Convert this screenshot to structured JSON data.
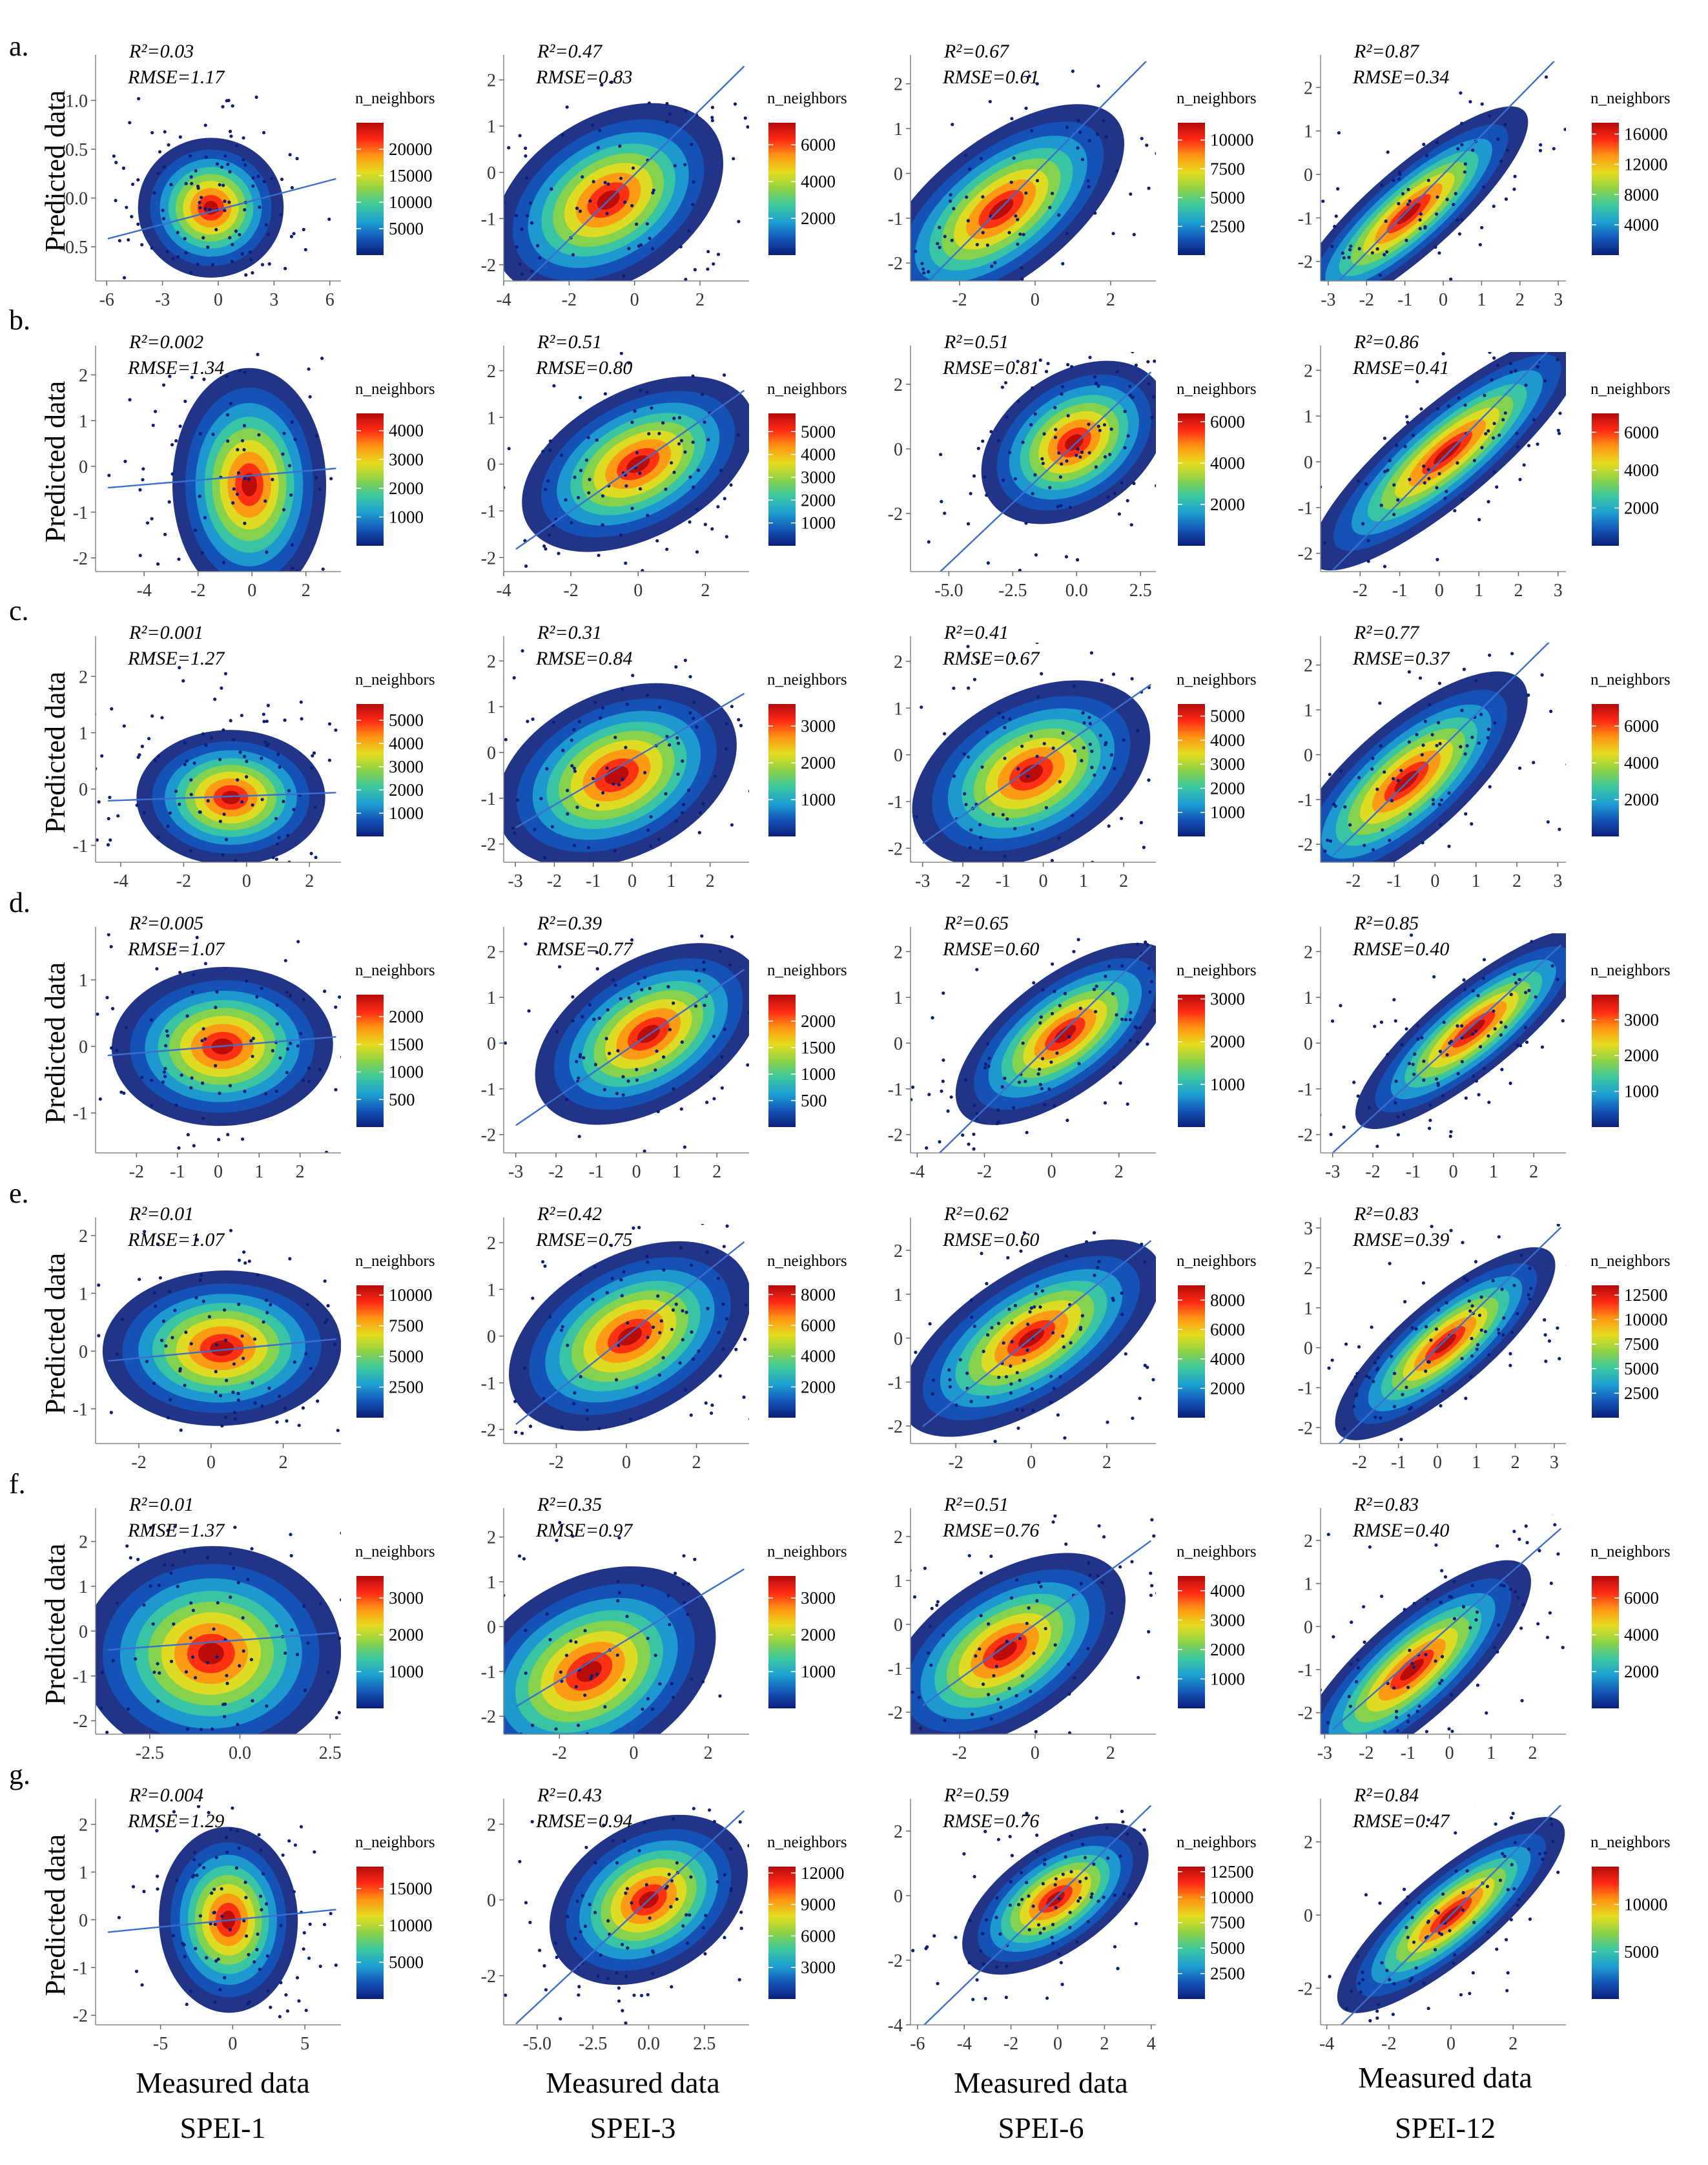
{
  "figure": {
    "y_axis_label": "Predicted data",
    "x_axis_label": "Measured data",
    "legend_title": "n_neighbors",
    "column_labels": [
      "SPEI-1",
      "SPEI-3",
      "SPEI-6",
      "SPEI-12"
    ],
    "colorscale": [
      "#0a1e7a",
      "#1455b8",
      "#1ea0d2",
      "#3cc8a0",
      "#8cd246",
      "#e6dc1e",
      "#ff9614",
      "#ff2814",
      "#b40a0a"
    ]
  },
  "chart_data": [
    {
      "type": "scatter",
      "row": "a.",
      "column": "SPEI-1",
      "r2": "R²=0.03",
      "rmse": "RMSE=1.17",
      "xlim": [
        -6.6,
        6.6
      ],
      "ylim": [
        -0.85,
        1.4
      ],
      "xticks": [
        "-6",
        "-3",
        "0",
        "3",
        "6"
      ],
      "yticks": [
        "-0.5",
        "0.0",
        "0.5",
        "1.0"
      ],
      "cx": -0.4,
      "cy": -0.1,
      "sx": 1.3,
      "sy": 0.24,
      "rho": 0.1,
      "fit": {
        "slope": 0.05,
        "intercept": -0.12
      },
      "legend_ticks": [
        "5000",
        "10000",
        "15000",
        "20000"
      ],
      "legend_max": 25000
    },
    {
      "type": "scatter",
      "row": "a.",
      "column": "SPEI-3",
      "r2": "R²=0.47",
      "rmse": "RMSE=0.83",
      "xlim": [
        -4,
        3.5
      ],
      "ylim": [
        -2.35,
        2.4
      ],
      "xticks": [
        "-4",
        "-2",
        "0",
        "2"
      ],
      "yticks": [
        "-2",
        "-1",
        "0",
        "1",
        "2"
      ],
      "cx": -0.8,
      "cy": -0.6,
      "sx": 0.95,
      "sy": 0.85,
      "rho": 0.72,
      "fit": {
        "slope": 0.7,
        "intercept": -0.05
      },
      "legend_ticks": [
        "2000",
        "4000",
        "6000"
      ],
      "legend_max": 7200
    },
    {
      "type": "scatter",
      "row": "a.",
      "column": "SPEI-6",
      "r2": "R²=0.67",
      "rmse": "RMSE=0.61",
      "xlim": [
        -3.3,
        3.2
      ],
      "ylim": [
        -2.4,
        2.5
      ],
      "xticks": [
        "-2",
        "0",
        "2"
      ],
      "yticks": [
        "-2",
        "-1",
        "0",
        "1",
        "2"
      ],
      "cx": -0.9,
      "cy": -0.8,
      "sx": 0.95,
      "sy": 0.9,
      "rho": 0.82,
      "fit": {
        "slope": 0.85,
        "intercept": 0.0
      },
      "legend_ticks": [
        "2500",
        "5000",
        "7500",
        "10000"
      ],
      "legend_max": 11500
    },
    {
      "type": "scatter",
      "row": "a.",
      "column": "SPEI-12",
      "r2": "R²=0.87",
      "rmse": "RMSE=0.34",
      "xlim": [
        -3.2,
        3.2
      ],
      "ylim": [
        -2.45,
        2.6
      ],
      "xticks": [
        "-3",
        "-2",
        "-1",
        "0",
        "1",
        "2",
        "3"
      ],
      "yticks": [
        "-2",
        "-1",
        "0",
        "1",
        "2"
      ],
      "cx": -0.9,
      "cy": -0.9,
      "sx": 0.95,
      "sy": 0.9,
      "rho": 0.93,
      "fit": {
        "slope": 0.9,
        "intercept": 0.0
      },
      "legend_ticks": [
        "4000",
        "8000",
        "12000",
        "16000"
      ],
      "legend_max": 17500
    },
    {
      "type": "scatter",
      "row": "b.",
      "column": "SPEI-1",
      "r2": "R²=0.002",
      "rmse": "RMSE=1.34",
      "xlim": [
        -5.8,
        3.3
      ],
      "ylim": [
        -2.3,
        2.5
      ],
      "xticks": [
        "-4",
        "-2",
        "0",
        "2"
      ],
      "yticks": [
        "-2",
        "-1",
        "0",
        "1",
        "2"
      ],
      "cx": -0.1,
      "cy": -0.4,
      "sx": 0.95,
      "sy": 0.85,
      "rho": 0.0,
      "fit": {
        "slope": 0.05,
        "intercept": -0.2
      },
      "legend_ticks": [
        "1000",
        "2000",
        "3000",
        "4000"
      ],
      "legend_max": 4600
    },
    {
      "type": "scatter",
      "row": "b.",
      "column": "SPEI-3",
      "r2": "R²=0.51",
      "rmse": "RMSE=0.80",
      "xlim": [
        -4,
        3.3
      ],
      "ylim": [
        -2.3,
        2.4
      ],
      "xticks": [
        "-4",
        "-2",
        "0",
        "2"
      ],
      "yticks": [
        "-2",
        "-1",
        "0",
        "1",
        "2"
      ],
      "cx": 0.0,
      "cy": 0.0,
      "sx": 1.0,
      "sy": 0.75,
      "rho": 0.72,
      "fit": {
        "slope": 0.5,
        "intercept": 0.0
      },
      "legend_ticks": [
        "1000",
        "2000",
        "3000",
        "4000",
        "5000"
      ],
      "legend_max": 5800
    },
    {
      "type": "scatter",
      "row": "b.",
      "column": "SPEI-6",
      "r2": "R²=0.51",
      "rmse": "RMSE=0.81",
      "xlim": [
        -6.5,
        3.1
      ],
      "ylim": [
        -3.8,
        3.0
      ],
      "xticks": [
        "-5.0",
        "-2.5",
        "0.0",
        "2.5"
      ],
      "yticks": [
        "-2",
        "0",
        "2"
      ],
      "cx": -0.1,
      "cy": 0.2,
      "sx": 1.0,
      "sy": 1.0,
      "rho": 0.7,
      "fit": {
        "slope": 0.75,
        "intercept": 0.2
      },
      "legend_ticks": [
        "2000",
        "4000",
        "6000"
      ],
      "legend_max": 6400
    },
    {
      "type": "scatter",
      "row": "b.",
      "column": "SPEI-12",
      "r2": "R²=0.86",
      "rmse": "RMSE=0.41",
      "xlim": [
        -3.0,
        3.2
      ],
      "ylim": [
        -2.4,
        2.4
      ],
      "xticks": [
        "-2",
        "-1",
        "0",
        "1",
        "2",
        "3"
      ],
      "yticks": [
        "-2",
        "-1",
        "0",
        "1",
        "2"
      ],
      "cx": 0.2,
      "cy": 0.2,
      "sx": 1.05,
      "sy": 0.95,
      "rho": 0.93,
      "fit": {
        "slope": 0.88,
        "intercept": 0.0
      },
      "legend_ticks": [
        "2000",
        "4000",
        "6000"
      ],
      "legend_max": 7000
    },
    {
      "type": "scatter",
      "row": "c.",
      "column": "SPEI-1",
      "r2": "R²=0.001",
      "rmse": "RMSE=1.27",
      "xlim": [
        -4.8,
        3.0
      ],
      "ylim": [
        -1.3,
        2.6
      ],
      "xticks": [
        "-4",
        "-2",
        "0",
        "2"
      ],
      "yticks": [
        "-1",
        "0",
        "1",
        "2"
      ],
      "cx": -0.5,
      "cy": -0.15,
      "sx": 1.0,
      "sy": 0.4,
      "rho": 0.0,
      "fit": {
        "slope": 0.02,
        "intercept": -0.12
      },
      "legend_ticks": [
        "1000",
        "2000",
        "3000",
        "4000",
        "5000"
      ],
      "legend_max": 5700
    },
    {
      "type": "scatter",
      "row": "c.",
      "column": "SPEI-3",
      "r2": "R²=0.31",
      "rmse": "RMSE=0.84",
      "xlim": [
        -3.3,
        3.0
      ],
      "ylim": [
        -2.4,
        2.4
      ],
      "xticks": [
        "-3",
        "-2",
        "-1",
        "0",
        "1",
        "2"
      ],
      "yticks": [
        "-2",
        "-1",
        "0",
        "1",
        "2"
      ],
      "cx": -0.4,
      "cy": -0.5,
      "sx": 0.95,
      "sy": 0.75,
      "rho": 0.6,
      "fit": {
        "slope": 0.5,
        "intercept": -0.15
      },
      "legend_ticks": [
        "1000",
        "2000",
        "3000"
      ],
      "legend_max": 3600
    },
    {
      "type": "scatter",
      "row": "c.",
      "column": "SPEI-6",
      "r2": "R²=0.41",
      "rmse": "RMSE=0.67",
      "xlim": [
        -3.3,
        2.8
      ],
      "ylim": [
        -2.3,
        2.4
      ],
      "xticks": [
        "-3",
        "-2",
        "-1",
        "0",
        "1",
        "2"
      ],
      "yticks": [
        "-2",
        "-1",
        "0",
        "1",
        "2"
      ],
      "cx": -0.3,
      "cy": -0.4,
      "sx": 0.9,
      "sy": 0.75,
      "rho": 0.65,
      "fit": {
        "slope": 0.6,
        "intercept": -0.1
      },
      "legend_ticks": [
        "1000",
        "2000",
        "3000",
        "4000",
        "5000"
      ],
      "legend_max": 5500
    },
    {
      "type": "scatter",
      "row": "c.",
      "column": "SPEI-12",
      "r2": "R²=0.77",
      "rmse": "RMSE=0.37",
      "xlim": [
        -2.8,
        3.2
      ],
      "ylim": [
        -2.4,
        2.5
      ],
      "xticks": [
        "-2",
        "-1",
        "0",
        "1",
        "2",
        "3"
      ],
      "yticks": [
        "-2",
        "-1",
        "0",
        "1",
        "2"
      ],
      "cx": -0.7,
      "cy": -0.6,
      "sx": 0.9,
      "sy": 0.9,
      "rho": 0.88,
      "fit": {
        "slope": 0.9,
        "intercept": 0.0
      },
      "legend_ticks": [
        "2000",
        "4000",
        "6000"
      ],
      "legend_max": 7200
    },
    {
      "type": "scatter",
      "row": "d.",
      "column": "SPEI-1",
      "r2": "R²=0.005",
      "rmse": "RMSE=1.07",
      "xlim": [
        -3.0,
        3.0
      ],
      "ylim": [
        -1.6,
        1.7
      ],
      "xticks": [
        "-2",
        "-1",
        "0",
        "1",
        "2"
      ],
      "yticks": [
        "-1",
        "0",
        "1"
      ],
      "cx": 0.1,
      "cy": 0.0,
      "sx": 0.9,
      "sy": 0.4,
      "rho": 0.1,
      "fit": {
        "slope": 0.05,
        "intercept": 0.0
      },
      "legend_ticks": [
        "500",
        "1000",
        "1500",
        "2000"
      ],
      "legend_max": 2400
    },
    {
      "type": "scatter",
      "row": "d.",
      "column": "SPEI-3",
      "r2": "R²=0.39",
      "rmse": "RMSE=0.77",
      "xlim": [
        -3.3,
        2.8
      ],
      "ylim": [
        -2.4,
        2.4
      ],
      "xticks": [
        "-3",
        "-2",
        "-1",
        "0",
        "1",
        "2"
      ],
      "yticks": [
        "-2",
        "-1",
        "0",
        "1",
        "2"
      ],
      "cx": 0.3,
      "cy": 0.2,
      "sx": 0.85,
      "sy": 0.75,
      "rho": 0.7,
      "fit": {
        "slope": 0.6,
        "intercept": 0.0
      },
      "legend_ticks": [
        "500",
        "1000",
        "1500",
        "2000"
      ],
      "legend_max": 2500
    },
    {
      "type": "scatter",
      "row": "d.",
      "column": "SPEI-6",
      "r2": "R²=0.65",
      "rmse": "RMSE=0.60",
      "xlim": [
        -4.2,
        3.1
      ],
      "ylim": [
        -2.4,
        2.4
      ],
      "xticks": [
        "-4",
        "-2",
        "0",
        "2"
      ],
      "yticks": [
        "-2",
        "-1",
        "0",
        "1",
        "2"
      ],
      "cx": 0.4,
      "cy": 0.2,
      "sx": 0.9,
      "sy": 0.8,
      "rho": 0.85,
      "fit": {
        "slope": 0.72,
        "intercept": 0.0
      },
      "legend_ticks": [
        "1000",
        "2000",
        "3000"
      ],
      "legend_max": 3100
    },
    {
      "type": "scatter",
      "row": "d.",
      "column": "SPEI-12",
      "r2": "R²=0.85",
      "rmse": "RMSE=0.40",
      "xlim": [
        -3.3,
        2.8
      ],
      "ylim": [
        -2.4,
        2.4
      ],
      "xticks": [
        "-3",
        "-2",
        "-1",
        "0",
        "1",
        "2"
      ],
      "yticks": [
        "-2",
        "-1",
        "0",
        "1",
        "2"
      ],
      "cx": 0.5,
      "cy": 0.3,
      "sx": 0.9,
      "sy": 0.8,
      "rho": 0.92,
      "fit": {
        "slope": 0.8,
        "intercept": 0.0
      },
      "legend_ticks": [
        "1000",
        "2000",
        "3000"
      ],
      "legend_max": 3700
    },
    {
      "type": "scatter",
      "row": "e.",
      "column": "SPEI-1",
      "r2": "R²=0.01",
      "rmse": "RMSE=1.07",
      "xlim": [
        -3.2,
        3.6
      ],
      "ylim": [
        -1.6,
        2.2
      ],
      "xticks": [
        "-2",
        "0",
        "2"
      ],
      "yticks": [
        "-1",
        "0",
        "1",
        "2"
      ],
      "cx": 0.3,
      "cy": 0.05,
      "sx": 1.1,
      "sy": 0.45,
      "rho": 0.1,
      "fit": {
        "slope": 0.06,
        "intercept": 0.0
      },
      "legend_ticks": [
        "2500",
        "5000",
        "7500",
        "10000"
      ],
      "legend_max": 10800
    },
    {
      "type": "scatter",
      "row": "e.",
      "column": "SPEI-3",
      "r2": "R²=0.42",
      "rmse": "RMSE=0.75",
      "xlim": [
        -3.5,
        3.5
      ],
      "ylim": [
        -2.3,
        2.4
      ],
      "xticks": [
        "-2",
        "0",
        "2"
      ],
      "yticks": [
        "-2",
        "-1",
        "0",
        "1",
        "2"
      ],
      "cx": 0.1,
      "cy": 0.0,
      "sx": 1.0,
      "sy": 0.8,
      "rho": 0.7,
      "fit": {
        "slope": 0.6,
        "intercept": 0.0
      },
      "legend_ticks": [
        "2000",
        "4000",
        "6000",
        "8000"
      ],
      "legend_max": 8600
    },
    {
      "type": "scatter",
      "row": "e.",
      "column": "SPEI-6",
      "r2": "R²=0.62",
      "rmse": "RMSE=0.60",
      "xlim": [
        -3.2,
        3.3
      ],
      "ylim": [
        -2.4,
        2.6
      ],
      "xticks": [
        "-2",
        "0",
        "2"
      ],
      "yticks": [
        "-2",
        "-1",
        "0",
        "1",
        "2"
      ],
      "cx": 0.0,
      "cy": 0.0,
      "sx": 1.05,
      "sy": 0.85,
      "rho": 0.8,
      "fit": {
        "slope": 0.7,
        "intercept": 0.0
      },
      "legend_ticks": [
        "2000",
        "4000",
        "6000",
        "8000"
      ],
      "legend_max": 9000
    },
    {
      "type": "scatter",
      "row": "e.",
      "column": "SPEI-12",
      "r2": "R²=0.83",
      "rmse": "RMSE=0.39",
      "xlim": [
        -3.0,
        3.3
      ],
      "ylim": [
        -2.4,
        3.1
      ],
      "xticks": [
        "-2",
        "-1",
        "0",
        "1",
        "2",
        "3"
      ],
      "yticks": [
        "-2",
        "-1",
        "0",
        "1",
        "2",
        "3"
      ],
      "cx": 0.2,
      "cy": 0.1,
      "sx": 0.9,
      "sy": 0.85,
      "rho": 0.9,
      "fit": {
        "slope": 0.95,
        "intercept": 0.0
      },
      "legend_ticks": [
        "2500",
        "5000",
        "7500",
        "10000",
        "12500"
      ],
      "legend_max": 13500
    },
    {
      "type": "scatter",
      "row": "f.",
      "column": "SPEI-1",
      "r2": "R²=0.01",
      "rmse": "RMSE=1.37",
      "xlim": [
        -4.0,
        2.8
      ],
      "ylim": [
        -2.3,
        2.6
      ],
      "xticks": [
        "-2.5",
        "0.0",
        "2.5"
      ],
      "yticks": [
        "-2",
        "-1",
        "0",
        "1",
        "2"
      ],
      "cx": -0.8,
      "cy": -0.5,
      "sx": 1.2,
      "sy": 0.8,
      "rho": 0.05,
      "fit": {
        "slope": 0.06,
        "intercept": -0.2
      },
      "legend_ticks": [
        "1000",
        "2000",
        "3000"
      ],
      "legend_max": 3600
    },
    {
      "type": "scatter",
      "row": "f.",
      "column": "SPEI-3",
      "r2": "R²=0.35",
      "rmse": "RMSE=0.97",
      "xlim": [
        -3.5,
        3.1
      ],
      "ylim": [
        -2.4,
        2.5
      ],
      "xticks": [
        "-2",
        "0",
        "2"
      ],
      "yticks": [
        "-2",
        "-1",
        "0",
        "1",
        "2"
      ],
      "cx": -1.2,
      "cy": -1.0,
      "sx": 1.0,
      "sy": 0.9,
      "rho": 0.65,
      "fit": {
        "slope": 0.5,
        "intercept": -0.2
      },
      "legend_ticks": [
        "1000",
        "2000",
        "3000"
      ],
      "legend_max": 3600
    },
    {
      "type": "scatter",
      "row": "f.",
      "column": "SPEI-6",
      "r2": "R²=0.51",
      "rmse": "RMSE=0.76",
      "xlim": [
        -3.3,
        3.2
      ],
      "ylim": [
        -2.5,
        2.5
      ],
      "xticks": [
        "-2",
        "0",
        "2"
      ],
      "yticks": [
        "-2",
        "-1",
        "0",
        "1",
        "2"
      ],
      "cx": -0.8,
      "cy": -0.6,
      "sx": 0.95,
      "sy": 0.85,
      "rho": 0.75,
      "fit": {
        "slope": 0.62,
        "intercept": 0.0
      },
      "legend_ticks": [
        "1000",
        "2000",
        "3000",
        "4000"
      ],
      "legend_max": 4500
    },
    {
      "type": "scatter",
      "row": "f.",
      "column": "SPEI-12",
      "r2": "R²=0.83",
      "rmse": "RMSE=0.40",
      "xlim": [
        -3.1,
        2.8
      ],
      "ylim": [
        -2.5,
        2.6
      ],
      "xticks": [
        "-3",
        "-2",
        "-1",
        "0",
        "1",
        "2"
      ],
      "yticks": [
        "-2",
        "-1",
        "0",
        "1",
        "2"
      ],
      "cx": -0.9,
      "cy": -1.0,
      "sx": 0.9,
      "sy": 0.9,
      "rho": 0.9,
      "fit": {
        "slope": 0.85,
        "intercept": 0.0
      },
      "legend_ticks": [
        "2000",
        "4000",
        "6000"
      ],
      "legend_max": 7200
    },
    {
      "type": "scatter",
      "row": "g.",
      "column": "SPEI-1",
      "r2": "R²=0.004",
      "rmse": "RMSE=1.29",
      "xlim": [
        -9.5,
        7.5
      ],
      "ylim": [
        -2.2,
        2.4
      ],
      "xticks": [
        "-5",
        "0",
        "5"
      ],
      "yticks": [
        "-2",
        "-1",
        "0",
        "1",
        "2"
      ],
      "cx": -0.3,
      "cy": 0.0,
      "sx": 1.6,
      "sy": 0.65,
      "rho": 0.05,
      "fit": {
        "slope": 0.03,
        "intercept": 0.0
      },
      "legend_ticks": [
        "5000",
        "10000",
        "15000"
      ],
      "legend_max": 18000
    },
    {
      "type": "scatter",
      "row": "g.",
      "column": "SPEI-3",
      "r2": "R²=0.43",
      "rmse": "RMSE=0.94",
      "xlim": [
        -6.5,
        4.5
      ],
      "ylim": [
        -3.3,
        2.5
      ],
      "xticks": [
        "-5.0",
        "-2.5",
        "0.0",
        "2.5"
      ],
      "yticks": [
        "-2",
        "0",
        "2"
      ],
      "cx": 0.0,
      "cy": 0.0,
      "sx": 1.1,
      "sy": 0.95,
      "rho": 0.72,
      "fit": {
        "slope": 0.55,
        "intercept": 0.0
      },
      "legend_ticks": [
        "3000",
        "6000",
        "9000",
        "12000"
      ],
      "legend_max": 12600
    },
    {
      "type": "scatter",
      "row": "g.",
      "column": "SPEI-6",
      "r2": "R²=0.59",
      "rmse": "RMSE=0.76",
      "xlim": [
        -6.3,
        4.2
      ],
      "ylim": [
        -4.0,
        2.8
      ],
      "xticks": [
        "-6",
        "-4",
        "-2",
        "0",
        "2",
        "4"
      ],
      "yticks": [
        "-4",
        "-2",
        "0",
        "2"
      ],
      "cx": -0.1,
      "cy": -0.1,
      "sx": 1.1,
      "sy": 0.95,
      "rho": 0.82,
      "fit": {
        "slope": 0.7,
        "intercept": 0.0
      },
      "legend_ticks": [
        "2500",
        "5000",
        "7500",
        "10000",
        "12500"
      ],
      "legend_max": 13000
    },
    {
      "type": "scatter",
      "row": "g.",
      "column": "SPEI-12",
      "r2": "R²=0.84",
      "rmse": "RMSE=0.47",
      "xlim": [
        -4.2,
        3.7
      ],
      "ylim": [
        -3.0,
        3.0
      ],
      "xticks": [
        "-4",
        "-2",
        "0",
        "2"
      ],
      "yticks": [
        "-2",
        "0",
        "2"
      ],
      "cx": 0.0,
      "cy": 0.0,
      "sx": 1.1,
      "sy": 1.0,
      "rho": 0.92,
      "fit": {
        "slope": 0.85,
        "intercept": 0.0
      },
      "legend_ticks": [
        "5000",
        "10000"
      ],
      "legend_max": 14000
    }
  ]
}
